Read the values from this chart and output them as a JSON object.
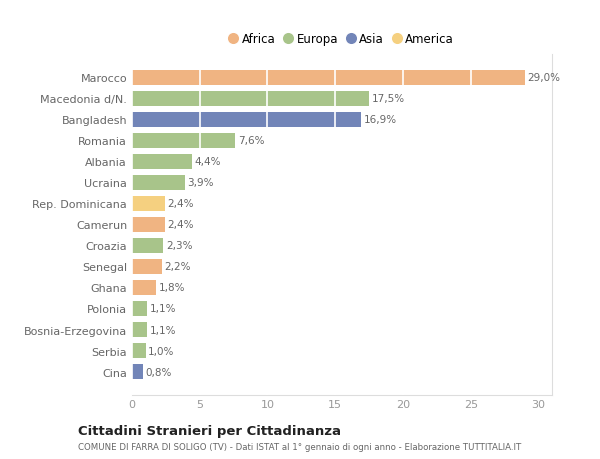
{
  "categories": [
    "Marocco",
    "Macedonia d/N.",
    "Bangladesh",
    "Romania",
    "Albania",
    "Ucraina",
    "Rep. Dominicana",
    "Camerun",
    "Croazia",
    "Senegal",
    "Ghana",
    "Polonia",
    "Bosnia-Erzegovina",
    "Serbia",
    "Cina"
  ],
  "values": [
    29.0,
    17.5,
    16.9,
    7.6,
    4.4,
    3.9,
    2.4,
    2.4,
    2.3,
    2.2,
    1.8,
    1.1,
    1.1,
    1.0,
    0.8
  ],
  "labels": [
    "29,0%",
    "17,5%",
    "16,9%",
    "7,6%",
    "4,4%",
    "3,9%",
    "2,4%",
    "2,4%",
    "2,3%",
    "2,2%",
    "1,8%",
    "1,1%",
    "1,1%",
    "1,0%",
    "0,8%"
  ],
  "continent": [
    "Africa",
    "Europa",
    "Asia",
    "Europa",
    "Europa",
    "Europa",
    "America",
    "Africa",
    "Europa",
    "Africa",
    "Africa",
    "Europa",
    "Europa",
    "Europa",
    "Asia"
  ],
  "colors": {
    "Africa": "#F0B482",
    "Europa": "#A8C48A",
    "Asia": "#7285B8",
    "America": "#F5D080"
  },
  "legend_order": [
    "Africa",
    "Europa",
    "Asia",
    "America"
  ],
  "title": "Cittadini Stranieri per Cittadinanza",
  "subtitle": "COMUNE DI FARRA DI SOLIGO (TV) - Dati ISTAT al 1° gennaio di ogni anno - Elaborazione TUTTITALIA.IT",
  "xlim": [
    0,
    31
  ],
  "xticks": [
    0,
    5,
    10,
    15,
    20,
    25,
    30
  ],
  "background_color": "#ffffff",
  "grid_color": "#ffffff"
}
